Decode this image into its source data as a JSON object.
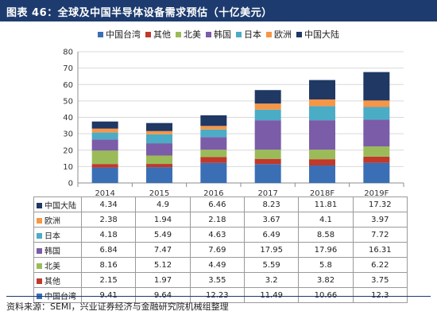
{
  "title": "图表 46：全球及中国半导体设备需求预估（十亿美元）",
  "source": "资料来源：SEMI，兴业证券经济与金融研究院机械组整理",
  "chart_data": {
    "type": "bar",
    "stacked": true,
    "categories": [
      "2014",
      "2015",
      "2016",
      "2017",
      "2018F",
      "2019F"
    ],
    "ylim": [
      0,
      80
    ],
    "yticks": [
      0,
      10,
      20,
      30,
      40,
      50,
      60,
      70,
      80
    ],
    "grid": true,
    "legend_position": "top",
    "series": [
      {
        "name": "中国台湾",
        "color": "#3a6fb5",
        "values": [
          9.41,
          9.64,
          12.23,
          11.49,
          10.66,
          12.3
        ]
      },
      {
        "name": "其他",
        "color": "#c0392b",
        "values": [
          2.15,
          1.97,
          3.55,
          3.2,
          3.82,
          3.75
        ]
      },
      {
        "name": "北美",
        "color": "#9bbb59",
        "values": [
          8.16,
          5.12,
          4.49,
          5.59,
          5.8,
          6.22
        ]
      },
      {
        "name": "韩国",
        "color": "#7b5ca8",
        "values": [
          6.84,
          7.47,
          7.69,
          17.95,
          17.96,
          16.31
        ]
      },
      {
        "name": "日本",
        "color": "#4bacc6",
        "values": [
          4.18,
          5.49,
          4.63,
          6.49,
          8.58,
          7.72
        ]
      },
      {
        "name": "欧洲",
        "color": "#f79646",
        "values": [
          2.38,
          1.94,
          2.18,
          3.67,
          4.1,
          3.97
        ]
      },
      {
        "name": "中国大陆",
        "color": "#1f3864",
        "values": [
          4.34,
          4.9,
          6.46,
          8.23,
          11.81,
          17.32
        ]
      }
    ]
  }
}
